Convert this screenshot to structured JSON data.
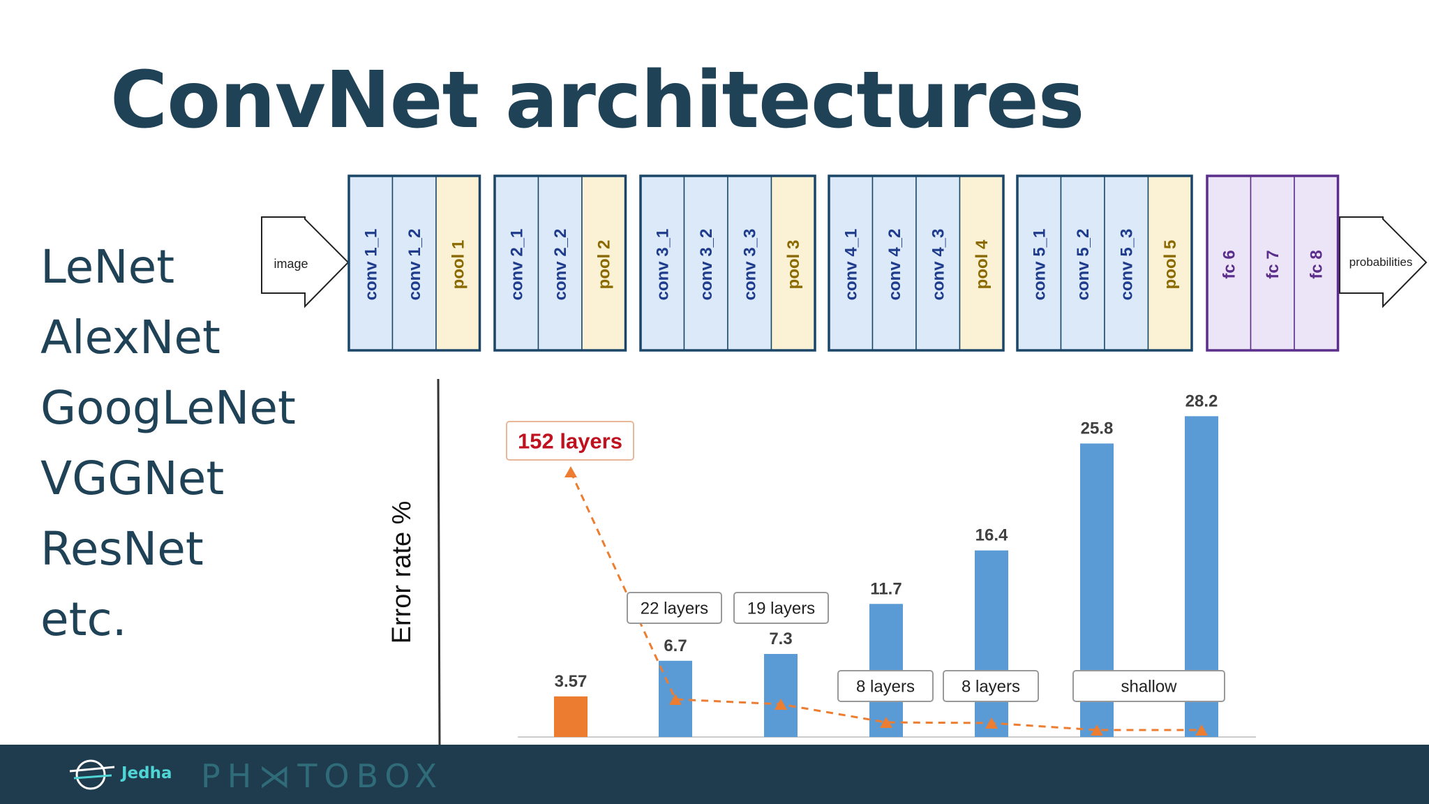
{
  "title": "ConvNet architectures",
  "networks": [
    "LeNet",
    "AlexNet",
    "GoogLeNet",
    "VGGNet",
    "ResNet",
    "etc."
  ],
  "vgg": {
    "input_label": "image",
    "output_label": "probabilities",
    "blocks": [
      {
        "kind": "conv",
        "layers": [
          "conv 1_1",
          "conv 1_2",
          "pool 1"
        ]
      },
      {
        "kind": "conv",
        "layers": [
          "conv 2_1",
          "conv 2_2",
          "pool 2"
        ]
      },
      {
        "kind": "conv",
        "layers": [
          "conv 3_1",
          "conv 3_2",
          "conv 3_3",
          "pool 3"
        ]
      },
      {
        "kind": "conv",
        "layers": [
          "conv 4_1",
          "conv 4_2",
          "conv 4_3",
          "pool 4"
        ]
      },
      {
        "kind": "conv",
        "layers": [
          "conv 5_1",
          "conv 5_2",
          "conv 5_3",
          "pool 5"
        ]
      },
      {
        "kind": "fc",
        "layers": [
          "fc 6",
          "fc 7",
          "fc 8"
        ]
      }
    ],
    "colors": {
      "conv_fill": "#dbe9f9",
      "conv_border": "#1b4668",
      "pool_fill": "#fbf1d4",
      "fc_fill": "#ece4f7",
      "fc_border": "#5a2e8a",
      "conv_text": "#1f3b8c",
      "pool_text": "#8a6a00",
      "fc_text": "#5a2e8a"
    }
  },
  "chart_data": {
    "type": "bar",
    "ylabel": "Error rate %",
    "categories": [
      "",
      "",
      "",
      "",
      "",
      "",
      ""
    ],
    "values": [
      3.57,
      6.7,
      7.3,
      11.7,
      16.4,
      25.8,
      28.2
    ],
    "value_labels": [
      "3.57",
      "6.7",
      "7.3",
      "11.7",
      "16.4",
      "25.8",
      "28.2"
    ],
    "bar_colors": [
      "#ec7d30",
      "#5b9bd5",
      "#5b9bd5",
      "#5b9bd5",
      "#5b9bd5",
      "#5b9bd5",
      "#5b9bd5"
    ],
    "ylim": [
      0,
      30
    ],
    "depth_line": {
      "name": "layers",
      "color": "#ed7d31",
      "style": "dashed"
    },
    "annotations": [
      "152 layers",
      "22 layers",
      "19 layers",
      "8 layers",
      "8 layers",
      "shallow"
    ],
    "grid": false
  },
  "footer": {
    "brand": "Jedha",
    "sponsor": "PH⋊TOBOX"
  },
  "colors": {
    "title": "#1f4257",
    "footer_bg": "#1f3c4e",
    "accent_red": "#c0111f"
  }
}
